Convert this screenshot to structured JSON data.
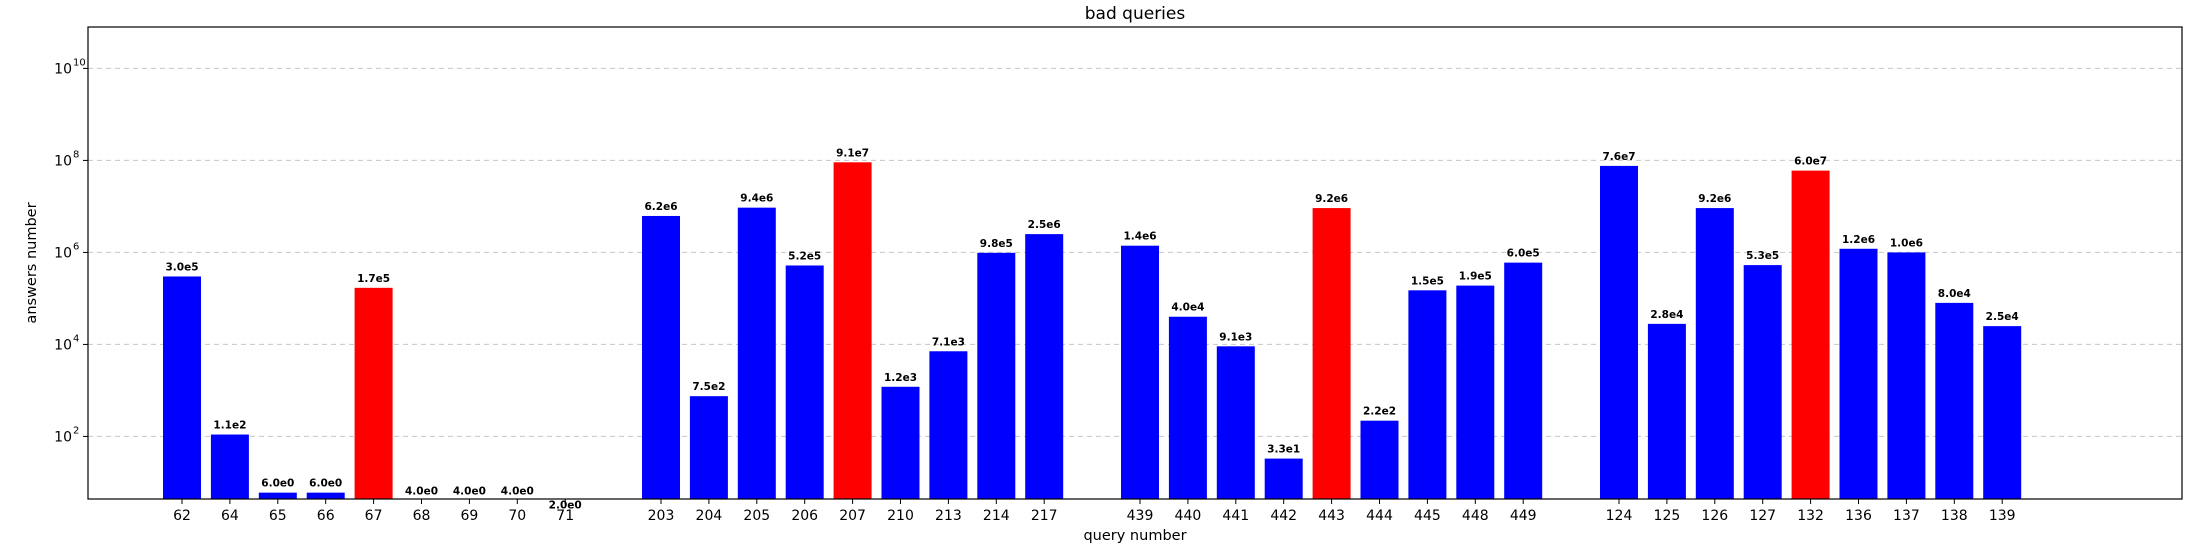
{
  "chart_data": {
    "type": "bar",
    "title": "bad queries",
    "xlabel": "query number",
    "ylabel": "answers number",
    "yscale": "log",
    "ylim": [
      1,
      100000000000
    ],
    "yticks": [
      {
        "value": 100,
        "base": "10",
        "exp": "2"
      },
      {
        "value": 10000,
        "base": "10",
        "exp": "4"
      },
      {
        "value": 1000000,
        "base": "10",
        "exp": "6"
      },
      {
        "value": 100000000,
        "base": "10",
        "exp": "8"
      },
      {
        "value": 10000000000,
        "base": "10",
        "exp": "10"
      }
    ],
    "grid": "horizontal dashed",
    "colors": {
      "normal": "#0000ff",
      "highlight": "#ff0000"
    },
    "groups": [
      {
        "bars": [
          {
            "category": "62",
            "value": 300000,
            "label": "3.0e5",
            "highlight": false
          },
          {
            "category": "64",
            "value": 110,
            "label": "1.1e2",
            "highlight": false
          },
          {
            "category": "65",
            "value": 6,
            "label": "6.0e0",
            "highlight": false
          },
          {
            "category": "66",
            "value": 6,
            "label": "6.0e0",
            "highlight": false
          },
          {
            "category": "67",
            "value": 170000,
            "label": "1.7e5",
            "highlight": true
          },
          {
            "category": "68",
            "value": 4,
            "label": "4.0e0",
            "highlight": false
          },
          {
            "category": "69",
            "value": 4,
            "label": "4.0e0",
            "highlight": false
          },
          {
            "category": "70",
            "value": 4,
            "label": "4.0e0",
            "highlight": false
          },
          {
            "category": "71",
            "value": 2,
            "label": "2.0e0",
            "highlight": false
          }
        ]
      },
      {
        "bars": [
          {
            "category": "203",
            "value": 6200000,
            "label": "6.2e6",
            "highlight": false
          },
          {
            "category": "204",
            "value": 750,
            "label": "7.5e2",
            "highlight": false
          },
          {
            "category": "205",
            "value": 9400000,
            "label": "9.4e6",
            "highlight": false
          },
          {
            "category": "206",
            "value": 520000,
            "label": "5.2e5",
            "highlight": false
          },
          {
            "category": "207",
            "value": 91000000,
            "label": "9.1e7",
            "highlight": true
          },
          {
            "category": "210",
            "value": 1200,
            "label": "1.2e3",
            "highlight": false
          },
          {
            "category": "213",
            "value": 7100,
            "label": "7.1e3",
            "highlight": false
          },
          {
            "category": "214",
            "value": 980000,
            "label": "9.8e5",
            "highlight": false
          },
          {
            "category": "217",
            "value": 2500000,
            "label": "2.5e6",
            "highlight": false
          }
        ]
      },
      {
        "bars": [
          {
            "category": "439",
            "value": 1400000,
            "label": "1.4e6",
            "highlight": false
          },
          {
            "category": "440",
            "value": 40000,
            "label": "4.0e4",
            "highlight": false
          },
          {
            "category": "441",
            "value": 9100,
            "label": "9.1e3",
            "highlight": false
          },
          {
            "category": "442",
            "value": 33,
            "label": "3.3e1",
            "highlight": false
          },
          {
            "category": "443",
            "value": 9200000,
            "label": "9.2e6",
            "highlight": true
          },
          {
            "category": "444",
            "value": 220,
            "label": "2.2e2",
            "highlight": false
          },
          {
            "category": "445",
            "value": 150000,
            "label": "1.5e5",
            "highlight": false
          },
          {
            "category": "448",
            "value": 190000,
            "label": "1.9e5",
            "highlight": false
          },
          {
            "category": "449",
            "value": 600000,
            "label": "6.0e5",
            "highlight": false
          }
        ]
      },
      {
        "bars": [
          {
            "category": "124",
            "value": 76000000,
            "label": "7.6e7",
            "highlight": false
          },
          {
            "category": "125",
            "value": 28000,
            "label": "2.8e4",
            "highlight": false
          },
          {
            "category": "126",
            "value": 9200000,
            "label": "9.2e6",
            "highlight": false
          },
          {
            "category": "127",
            "value": 530000,
            "label": "5.3e5",
            "highlight": false
          },
          {
            "category": "132",
            "value": 60000000,
            "label": "6.0e7",
            "highlight": true
          },
          {
            "category": "136",
            "value": 1200000,
            "label": "1.2e6",
            "highlight": false
          },
          {
            "category": "137",
            "value": 1000000,
            "label": "1.0e6",
            "highlight": false
          },
          {
            "category": "138",
            "value": 80000,
            "label": "8.0e4",
            "highlight": false
          },
          {
            "category": "139",
            "value": 25000,
            "label": "2.5e4",
            "highlight": false
          }
        ]
      }
    ]
  }
}
